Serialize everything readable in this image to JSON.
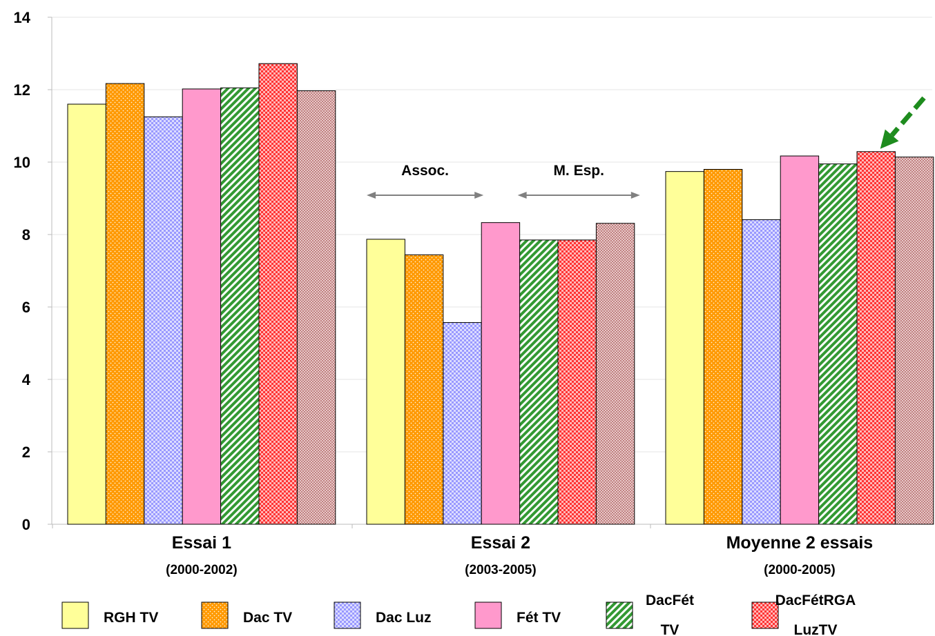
{
  "chart_data": {
    "type": "bar",
    "title": "",
    "xlabel": "",
    "ylabel": "",
    "ylim": [
      0,
      14
    ],
    "yticks": [
      0,
      2,
      4,
      6,
      8,
      10,
      12,
      14
    ],
    "grid": true,
    "legend_position": "bottom",
    "categories": [
      {
        "label": "Essai 1",
        "sublabel": "(2000-2002)"
      },
      {
        "label": "Essai 2",
        "sublabel": "(2003-2005)"
      },
      {
        "label": "Moyenne 2 essais",
        "sublabel": "(2000-2005)"
      }
    ],
    "series": [
      {
        "name": "RGH TV",
        "legend_lines": [
          "RGH TV"
        ],
        "color": "#ffff99",
        "pattern": "solid",
        "values": [
          11.6,
          7.87,
          9.74
        ]
      },
      {
        "name": "Dac TV",
        "legend_lines": [
          "Dac TV"
        ],
        "color": "#ff9900",
        "pattern": "dots",
        "values": [
          12.17,
          7.44,
          9.8
        ]
      },
      {
        "name": "Dac Luz",
        "legend_lines": [
          "Dac Luz"
        ],
        "color": "#9999ff",
        "pattern": "checker",
        "values": [
          11.25,
          5.57,
          8.41
        ]
      },
      {
        "name": "Fét TV",
        "legend_lines": [
          "Fét TV"
        ],
        "color": "#ff99cc",
        "pattern": "solid",
        "values": [
          12.02,
          8.33,
          10.17
        ]
      },
      {
        "name": "DacFét TV",
        "legend_lines": [
          "DacFét",
          "TV"
        ],
        "color": "#339933",
        "pattern": "diagonal",
        "values": [
          12.05,
          7.85,
          9.95
        ]
      },
      {
        "name": "DacFétRGA LuzTV",
        "legend_lines": [
          "DacFétRGA",
          "LuzTV"
        ],
        "color": "#ff3333",
        "pattern": "checker",
        "values": [
          12.72,
          7.85,
          10.29
        ]
      },
      {
        "name": "",
        "legend_lines": [],
        "color": "#c08080",
        "pattern": "fine",
        "values": [
          11.97,
          8.31,
          10.14
        ]
      }
    ],
    "annotations": [
      {
        "text": "Assoc.",
        "category": 1,
        "from_bar": 0,
        "to_bar": 3
      },
      {
        "text": "M. Esp.",
        "category": 1,
        "from_bar": 4,
        "to_bar": 6
      }
    ],
    "highlight_arrow": {
      "category": 2,
      "bar": 5,
      "color": "#1e8c1e"
    }
  }
}
